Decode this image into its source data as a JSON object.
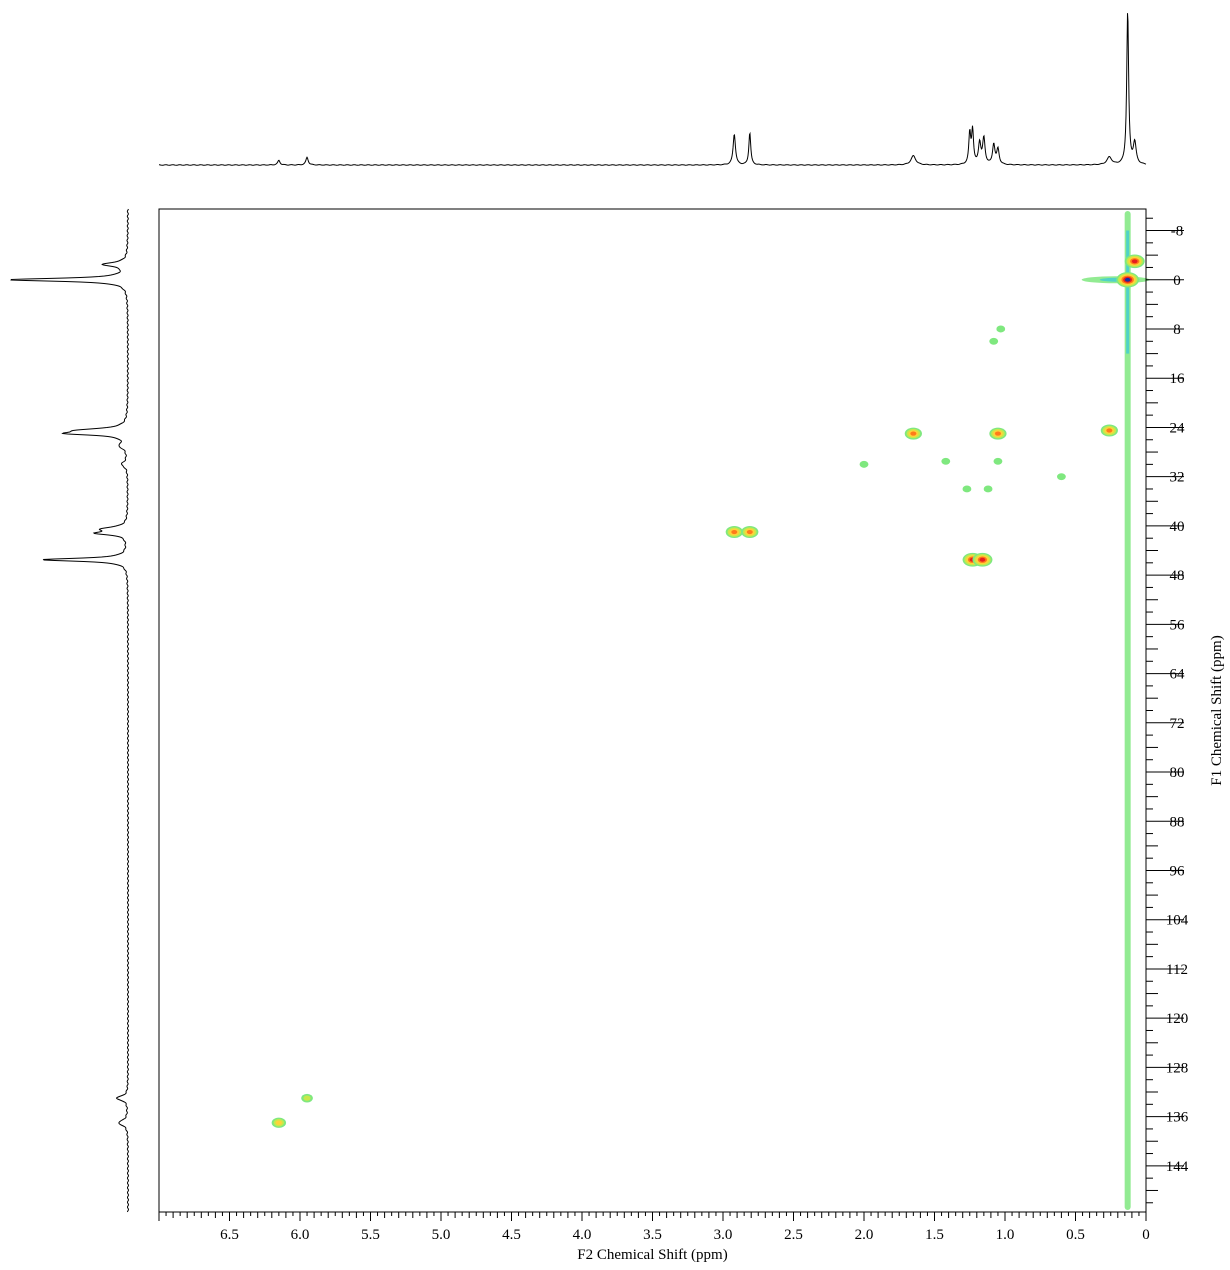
{
  "chart_data": {
    "type": "heatmap",
    "subtype": "2D NMR HSQC contour plot with projection spectra",
    "title": "",
    "xlabel": "F2 Chemical Shift (ppm)",
    "ylabel": "F1 Chemical Shift (ppm)",
    "x_axis": {
      "range": [
        7.0,
        0.0
      ],
      "reversed": true,
      "major_ticks": [
        6.5,
        6.0,
        5.5,
        5.0,
        4.5,
        4.0,
        3.5,
        3.0,
        2.5,
        2.0,
        1.5,
        1.0,
        0.5,
        0
      ],
      "tick_labels": [
        "6.5",
        "6.0",
        "5.5",
        "5.0",
        "4.5",
        "4.0",
        "3.5",
        "3.0",
        "2.5",
        "2.0",
        "1.5",
        "1.0",
        "0.5",
        "0"
      ],
      "minor_step": 0.05
    },
    "y_axis": {
      "range": [
        -11.5,
        151.5
      ],
      "reversed": true,
      "position": "right",
      "major_ticks": [
        -8,
        0,
        8,
        16,
        24,
        32,
        40,
        48,
        56,
        64,
        72,
        80,
        88,
        96,
        104,
        112,
        120,
        128,
        136,
        144
      ],
      "tick_labels": [
        "-8",
        "0",
        "8",
        "16",
        "24",
        "32",
        "40",
        "48",
        "56",
        "64",
        "72",
        "80",
        "88",
        "96",
        104,
        "112",
        "120",
        "128",
        "136",
        "144"
      ],
      "minor_step": 2
    },
    "grid": false,
    "legend": "none",
    "colormap": [
      "#7fe87f",
      "#c8e84a",
      "#ffd23a",
      "#ff7a1a",
      "#e61e1e",
      "#1a2f9e"
    ],
    "cross_peaks": [
      {
        "x": 0.13,
        "y": 0.0,
        "intensity": 6
      },
      {
        "x": 0.08,
        "y": -3.0,
        "intensity": 5
      },
      {
        "x": 0.26,
        "y": 24.5,
        "intensity": 4
      },
      {
        "x": 1.05,
        "y": 25.0,
        "intensity": 4
      },
      {
        "x": 1.65,
        "y": 25.0,
        "intensity": 4
      },
      {
        "x": 2.92,
        "y": 41.0,
        "intensity": 4
      },
      {
        "x": 2.81,
        "y": 41.0,
        "intensity": 4
      },
      {
        "x": 1.23,
        "y": 45.5,
        "intensity": 5
      },
      {
        "x": 1.16,
        "y": 45.5,
        "intensity": 5
      },
      {
        "x": 6.15,
        "y": 137.0,
        "intensity": 3
      },
      {
        "x": 5.95,
        "y": 133.0,
        "intensity": 2
      },
      {
        "x": 1.03,
        "y": 8.0,
        "intensity": 1
      },
      {
        "x": 1.08,
        "y": 10.0,
        "intensity": 1
      },
      {
        "x": 2.0,
        "y": 30.0,
        "intensity": 1
      },
      {
        "x": 1.42,
        "y": 29.5,
        "intensity": 1
      },
      {
        "x": 1.05,
        "y": 29.5,
        "intensity": 1
      },
      {
        "x": 1.27,
        "y": 34.0,
        "intensity": 1
      },
      {
        "x": 1.12,
        "y": 34.0,
        "intensity": 1
      },
      {
        "x": 0.6,
        "y": 32.0,
        "intensity": 1
      }
    ],
    "f2_projection_peaks": [
      {
        "x": 0.13,
        "height": 1.0,
        "width": 0.008
      },
      {
        "x": 0.08,
        "height": 0.14,
        "width": 0.012
      },
      {
        "x": 0.26,
        "height": 0.05,
        "width": 0.02
      },
      {
        "x": 1.05,
        "height": 0.1,
        "width": 0.01
      },
      {
        "x": 1.08,
        "height": 0.13,
        "width": 0.01
      },
      {
        "x": 1.15,
        "height": 0.17,
        "width": 0.01
      },
      {
        "x": 1.18,
        "height": 0.14,
        "width": 0.01
      },
      {
        "x": 1.23,
        "height": 0.22,
        "width": 0.008
      },
      {
        "x": 1.25,
        "height": 0.2,
        "width": 0.008
      },
      {
        "x": 1.65,
        "height": 0.06,
        "width": 0.02
      },
      {
        "x": 2.81,
        "height": 0.21,
        "width": 0.008
      },
      {
        "x": 2.92,
        "height": 0.2,
        "width": 0.01
      },
      {
        "x": 5.95,
        "height": 0.05,
        "width": 0.01
      },
      {
        "x": 6.15,
        "height": 0.03,
        "width": 0.01
      }
    ],
    "f1_projection_peaks": [
      {
        "y": 0.0,
        "height": 1.0,
        "width": 0.3
      },
      {
        "y": -2.5,
        "height": 0.2,
        "width": 0.4
      },
      {
        "y": 24.5,
        "height": 0.36,
        "width": 0.4
      },
      {
        "y": 25.0,
        "height": 0.4,
        "width": 0.3
      },
      {
        "y": 27.0,
        "height": 0.06,
        "width": 0.5
      },
      {
        "y": 30.0,
        "height": 0.05,
        "width": 0.5
      },
      {
        "y": 40.5,
        "height": 0.2,
        "width": 0.4
      },
      {
        "y": 41.2,
        "height": 0.24,
        "width": 0.3
      },
      {
        "y": 45.5,
        "height": 0.72,
        "width": 0.3
      },
      {
        "y": 133.0,
        "height": 0.1,
        "width": 0.4
      },
      {
        "y": 137.0,
        "height": 0.08,
        "width": 0.5
      }
    ]
  }
}
